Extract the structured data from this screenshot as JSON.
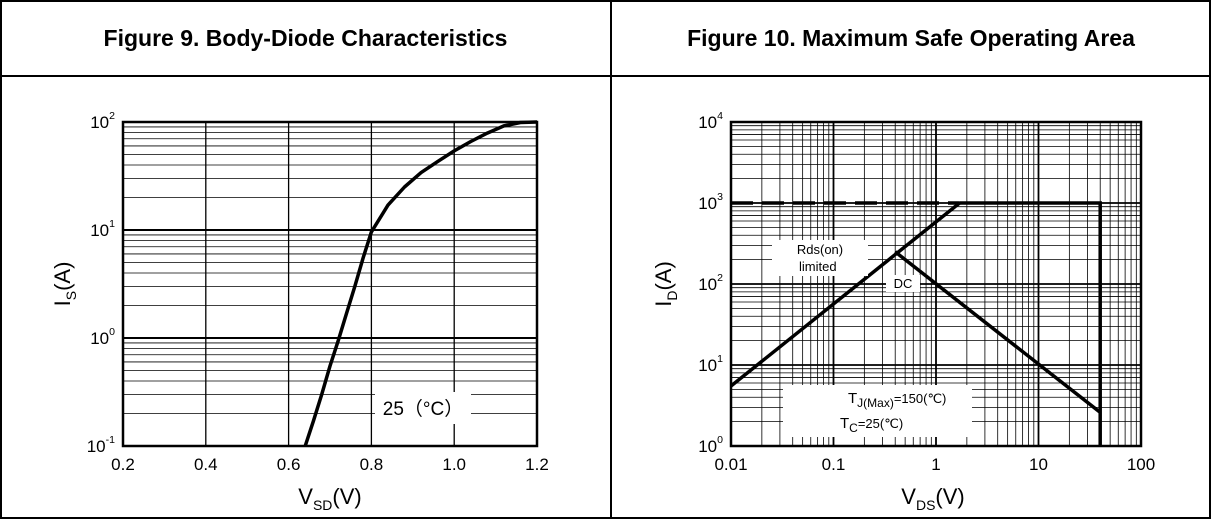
{
  "panels": {
    "left_title": "Figure 9. Body-Diode Characteristics",
    "right_title": "Figure 10. Maximum Safe Operating Area"
  },
  "chart_data": [
    {
      "type": "line",
      "title": "Figure 9. Body-Diode Characteristics",
      "xlabel": {
        "main": "V",
        "sub": "SD",
        "unit": "(V)"
      },
      "ylabel": {
        "main": "I",
        "sub": "S",
        "unit": "(A)"
      },
      "x_scale": "linear",
      "y_scale": "log",
      "xlim": [
        0.2,
        1.2
      ],
      "ylim": [
        0.1,
        100
      ],
      "x_ticks": [
        "0.2",
        "0.4",
        "0.6",
        "0.8",
        "1.0",
        "1.2"
      ],
      "y_ticks": [
        {
          "base": "10",
          "exp": "-1"
        },
        {
          "base": "10",
          "exp": "0"
        },
        {
          "base": "10",
          "exp": "1"
        },
        {
          "base": "10",
          "exp": "2"
        }
      ],
      "grid": true,
      "annotation": "25（°C）",
      "series": [
        {
          "x": [
            0.64,
            0.66,
            0.68,
            0.7,
            0.72,
            0.74,
            0.76,
            0.78,
            0.8,
            0.84,
            0.88,
            0.92,
            0.96,
            1.0,
            1.04,
            1.08,
            1.12,
            1.16,
            1.2
          ],
          "y": [
            0.1,
            0.17,
            0.3,
            0.55,
            0.95,
            1.7,
            3.0,
            5.5,
            9.6,
            17,
            25,
            34,
            43,
            54,
            66,
            79,
            92,
            99,
            100
          ]
        }
      ]
    },
    {
      "type": "line",
      "title": "Figure 10. Maximum Safe Operating Area",
      "xlabel": {
        "main": "V",
        "sub": "DS",
        "unit": "(V)"
      },
      "ylabel": {
        "main": "I",
        "sub": "D",
        "unit": "(A)"
      },
      "x_scale": "log",
      "y_scale": "log",
      "xlim": [
        0.01,
        100
      ],
      "ylim": [
        1,
        10000
      ],
      "x_ticks": [
        "0.01",
        "0.1",
        "1",
        "10",
        "100"
      ],
      "y_ticks": [
        {
          "base": "10",
          "exp": "0"
        },
        {
          "base": "10",
          "exp": "1"
        },
        {
          "base": "10",
          "exp": "2"
        },
        {
          "base": "10",
          "exp": "3"
        },
        {
          "base": "10",
          "exp": "4"
        }
      ],
      "grid": true,
      "labels": {
        "rds_line1": "Rds(on)",
        "rds_line2": "limited",
        "dc": "DC",
        "tj_main": "T",
        "tj_sub": "J(Max)",
        "tj_value": "=150(℃)",
        "tc_main": "T",
        "tc_sub": "C",
        "tc_value": "=25(℃)"
      },
      "series": [
        {
          "style": "solid",
          "x": [
            0.01,
            1.7
          ],
          "y": [
            5.5,
            1000
          ]
        },
        {
          "style": "dashed",
          "x": [
            0.01,
            1.7
          ],
          "y": [
            1000,
            1000
          ]
        },
        {
          "style": "solid",
          "x": [
            1.7,
            40,
            40
          ],
          "y": [
            1000,
            1000,
            1
          ]
        },
        {
          "style": "solid",
          "x": [
            0.4,
            40
          ],
          "y": [
            250,
            2.6
          ]
        }
      ]
    }
  ]
}
